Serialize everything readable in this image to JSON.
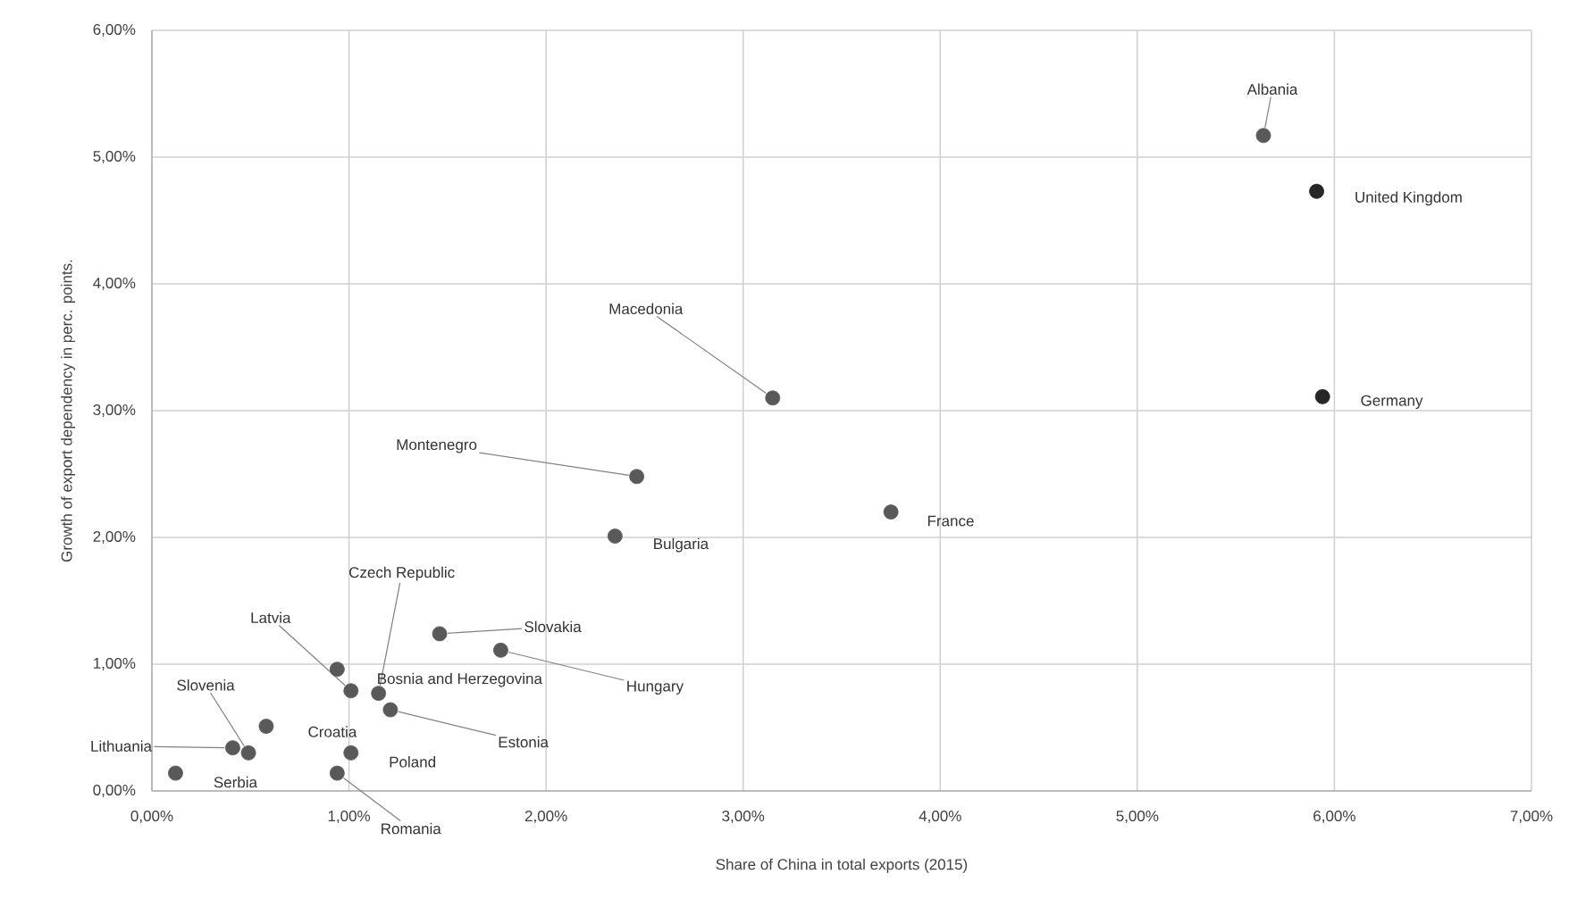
{
  "chart_data": {
    "type": "scatter",
    "xlabel": "Share of China in total exports (2015)",
    "ylabel": "Growth of export dependency in perc. points.",
    "xlim": [
      0,
      7
    ],
    "ylim": [
      0,
      6
    ],
    "xticks": [
      {
        "value": 0,
        "label": "0,00%"
      },
      {
        "value": 1,
        "label": "1,00%"
      },
      {
        "value": 2,
        "label": "2,00%"
      },
      {
        "value": 3,
        "label": "3,00%"
      },
      {
        "value": 4,
        "label": "4,00%"
      },
      {
        "value": 5,
        "label": "5,00%"
      },
      {
        "value": 6,
        "label": "6,00%"
      },
      {
        "value": 7,
        "label": "7,00%"
      }
    ],
    "yticks": [
      {
        "value": 0,
        "label": "0,00%"
      },
      {
        "value": 1,
        "label": "1,00%"
      },
      {
        "value": 2,
        "label": "2,00%"
      },
      {
        "value": 3,
        "label": "3,00%"
      },
      {
        "value": 4,
        "label": "4,00%"
      },
      {
        "value": 5,
        "label": "5,00%"
      },
      {
        "value": 6,
        "label": "6,00%"
      }
    ],
    "grid": true,
    "marker": "circle",
    "series": [
      {
        "x": [
          5.64,
          5.91,
          5.94,
          3.15,
          2.46,
          2.35,
          3.75,
          1.46,
          1.77,
          1.15,
          1.01,
          0.94,
          1.21,
          0.49,
          0.41,
          0.58,
          1.01,
          0.12,
          0.94
        ],
        "values": [
          5.17,
          4.73,
          3.11,
          3.1,
          2.48,
          2.01,
          2.2,
          1.24,
          1.11,
          0.77,
          0.79,
          0.96,
          0.64,
          0.3,
          0.34,
          0.51,
          0.3,
          0.14,
          0.14
        ],
        "colors": [
          "#595959",
          "#262626",
          "#262626",
          "#595959",
          "#595959",
          "#595959",
          "#595959",
          "#595959",
          "#595959",
          "#595959",
          "#595959",
          "#595959",
          "#595959",
          "#595959",
          "#595959",
          "#595959",
          "#595959",
          "#595959",
          "#595959"
        ]
      }
    ],
    "annotations": [
      {
        "text": "Albania",
        "x": 5.64,
        "y": 5.17
      },
      {
        "text": "United Kingdom",
        "x": 5.91,
        "y": 4.73
      },
      {
        "text": "Germany",
        "x": 5.94,
        "y": 3.11
      },
      {
        "text": "Macedonia",
        "x": 3.15,
        "y": 3.1
      },
      {
        "text": "Montenegro",
        "x": 2.46,
        "y": 2.48
      },
      {
        "text": "Bulgaria",
        "x": 2.35,
        "y": 2.01
      },
      {
        "text": "France",
        "x": 3.75,
        "y": 2.2
      },
      {
        "text": "Slovakia",
        "x": 1.46,
        "y": 1.24
      },
      {
        "text": "Hungary",
        "x": 1.77,
        "y": 1.11
      },
      {
        "text": "Czech Republic",
        "x": 1.15,
        "y": 0.77
      },
      {
        "text": "Latvia",
        "x": 1.01,
        "y": 0.79
      },
      {
        "text": "Bosnia and Herzegovina",
        "x": 0.94,
        "y": 0.96
      },
      {
        "text": "Estonia",
        "x": 1.21,
        "y": 0.64
      },
      {
        "text": "Slovenia",
        "x": 0.49,
        "y": 0.3
      },
      {
        "text": "Lithuania",
        "x": 0.41,
        "y": 0.34
      },
      {
        "text": "Croatia",
        "x": 0.58,
        "y": 0.51
      },
      {
        "text": "Poland",
        "x": 1.01,
        "y": 0.3
      },
      {
        "text": "Serbia",
        "x": 0.12,
        "y": 0.14
      },
      {
        "text": "Romania",
        "x": 0.94,
        "y": 0.14
      }
    ]
  }
}
